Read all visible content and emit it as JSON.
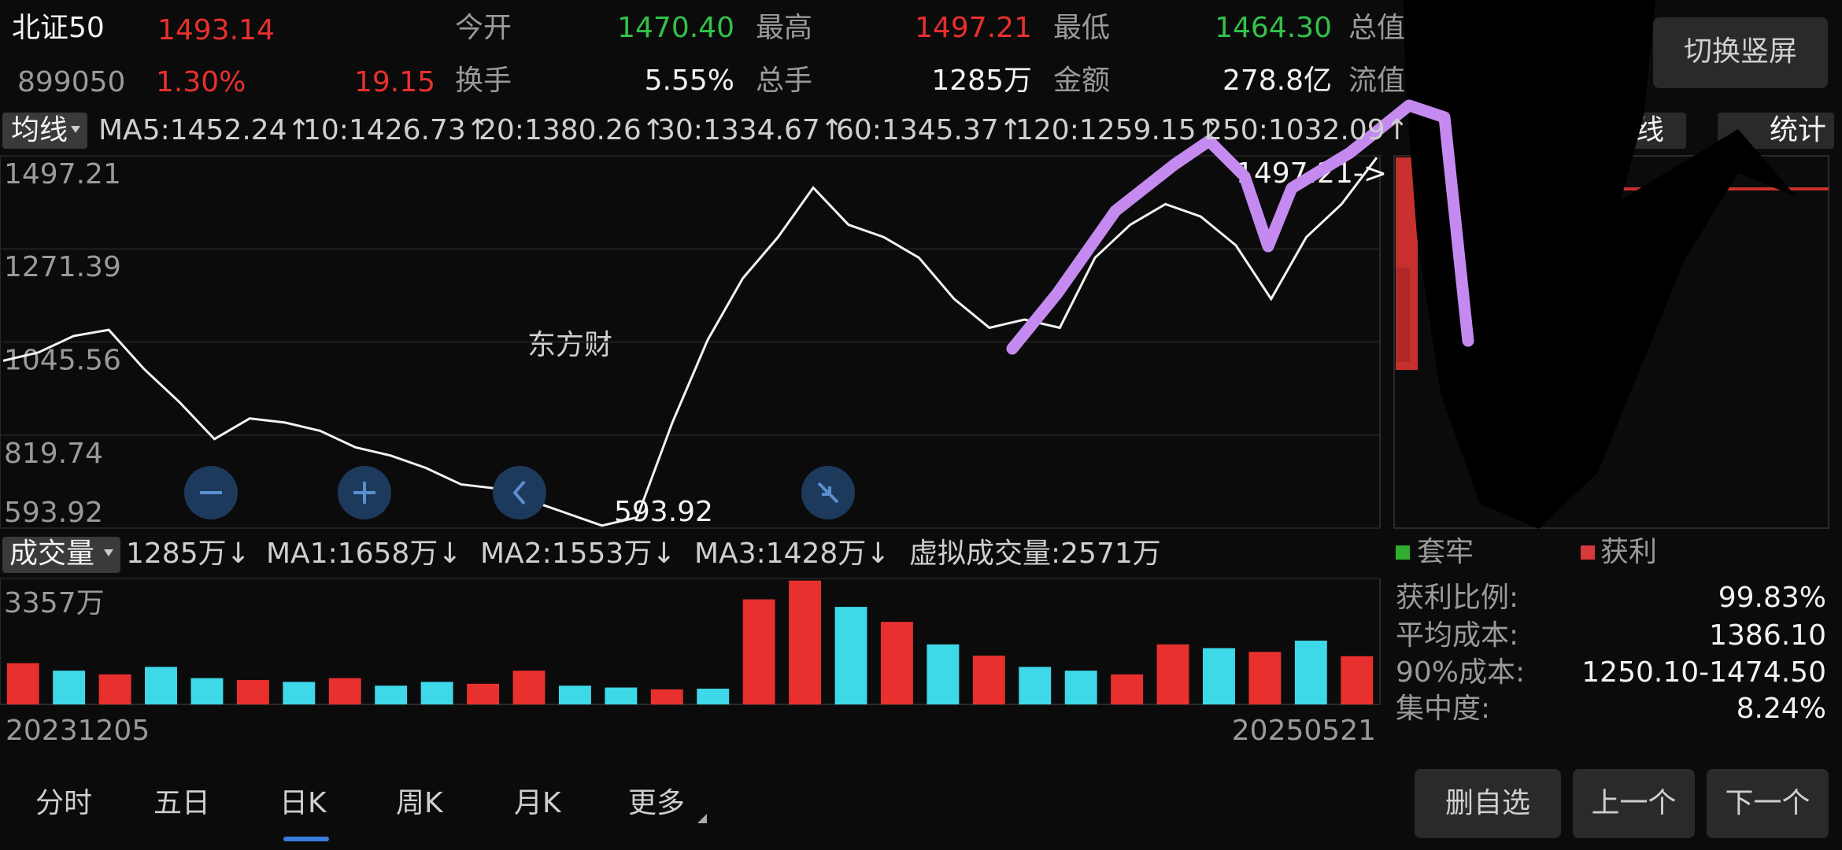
{
  "header": {
    "name": "北证50",
    "price": "1493.14",
    "code": "899050",
    "change_pct": "1.30%",
    "change": "19.15",
    "stats": [
      {
        "label": "今开",
        "value": "1470.40"
      },
      {
        "label": "最高",
        "value": "1497.21"
      },
      {
        "label": "最低",
        "value": "1464.30"
      },
      {
        "label": "总值"
      },
      {
        "label": "换手",
        "value": "5.55%"
      },
      {
        "label": "总手",
        "value": "1285万"
      },
      {
        "label": "金额",
        "value": "278.8亿"
      },
      {
        "label": "流值"
      }
    ],
    "button": "切换竖屏"
  },
  "ma_bar": {
    "selector": "均线",
    "items": [
      {
        "text": "MA5:1452.24↑",
        "color": "#f2f2f2"
      },
      {
        "text": "10:1426.73↑",
        "color": "#f5e04a"
      },
      {
        "text": "20:1380.26↑",
        "color": "#d23ed2"
      },
      {
        "text": "30:1334.67↑",
        "color": "#33c24a"
      },
      {
        "text": "60:1345.37↑",
        "color": "#dddddd"
      },
      {
        "text": "120:1259.15↑",
        "color": "#3a5be0"
      },
      {
        "text": "250:1032.09↑",
        "color": "#6cb6f5"
      }
    ],
    "right": [
      "线",
      "统计"
    ]
  },
  "watermark": "东方财",
  "chart_data": [
    {
      "type": "line",
      "color": "#f2f2f2",
      "ylim": [
        593.92,
        1497.21
      ],
      "yticks": [
        1497.21,
        1271.39,
        1045.56,
        819.74,
        593.92
      ],
      "grid": true,
      "annotations": [
        "1497.21->",
        "593.92"
      ],
      "values": [
        1000,
        1020,
        1060,
        1075,
        980,
        900,
        810,
        860,
        850,
        830,
        790,
        770,
        740,
        700,
        690,
        660,
        630,
        600,
        620,
        850,
        1050,
        1200,
        1300,
        1420,
        1330,
        1300,
        1250,
        1150,
        1080,
        1100,
        1080,
        1250,
        1330,
        1380,
        1350,
        1280,
        1150,
        1300,
        1380,
        1493
      ]
    },
    {
      "type": "bar",
      "ylim": [
        0,
        3357
      ],
      "yticks": [
        {
          "value": 3357,
          "label": "3357万"
        }
      ],
      "values": [
        1100,
        900,
        800,
        1000,
        700,
        650,
        600,
        700,
        500,
        600,
        550,
        900,
        500,
        450,
        400,
        420,
        2800,
        3300,
        2600,
        2200,
        1600,
        1300,
        1000,
        900,
        800,
        1600,
        1500,
        1400,
        1700,
        1285
      ],
      "colors": [
        "#e8302e",
        "#3fd8e8",
        "#e8302e",
        "#3fd8e8",
        "#3fd8e8",
        "#e8302e",
        "#3fd8e8",
        "#e8302e",
        "#3fd8e8",
        "#3fd8e8",
        "#e8302e",
        "#e8302e",
        "#3fd8e8",
        "#3fd8e8",
        "#e8302e",
        "#3fd8e8",
        "#e8302e",
        "#e8302e",
        "#3fd8e8",
        "#e8302e",
        "#3fd8e8",
        "#e8302e",
        "#3fd8e8",
        "#3fd8e8",
        "#e8302e",
        "#e8302e",
        "#3fd8e8",
        "#e8302e",
        "#3fd8e8",
        "#e8302e"
      ]
    }
  ],
  "volume_bar": {
    "selector": "成交量",
    "items": [
      {
        "text": "1285万↓",
        "color": "#f2f2f2"
      },
      {
        "text": "MA1:1658万↓",
        "color": "#f5e04a"
      },
      {
        "text": "MA2:1553万↓",
        "color": "#d23ed2"
      },
      {
        "text": "MA3:1428万↓",
        "color": "#33c24a"
      },
      {
        "text": "虚拟成交量:2571万",
        "color": "#9a9a9a"
      }
    ]
  },
  "dates": [
    "20231205",
    "20250521"
  ],
  "chips": {
    "legend": [
      "套牢",
      "获利"
    ],
    "rows": [
      {
        "label": "获利比例:",
        "value": "99.83%"
      },
      {
        "label": "平均成本:",
        "value": "1386.10"
      },
      {
        "label": "90%成本:",
        "value": "1250.10-1474.50"
      },
      {
        "label": "集中度:",
        "value": "8.24%"
      }
    ]
  },
  "tabs": {
    "items": [
      "分时",
      "五日",
      "日K",
      "周K",
      "月K",
      "更多"
    ],
    "active": 2
  },
  "buttons": [
    "删自选",
    "上一个",
    "下一个"
  ]
}
